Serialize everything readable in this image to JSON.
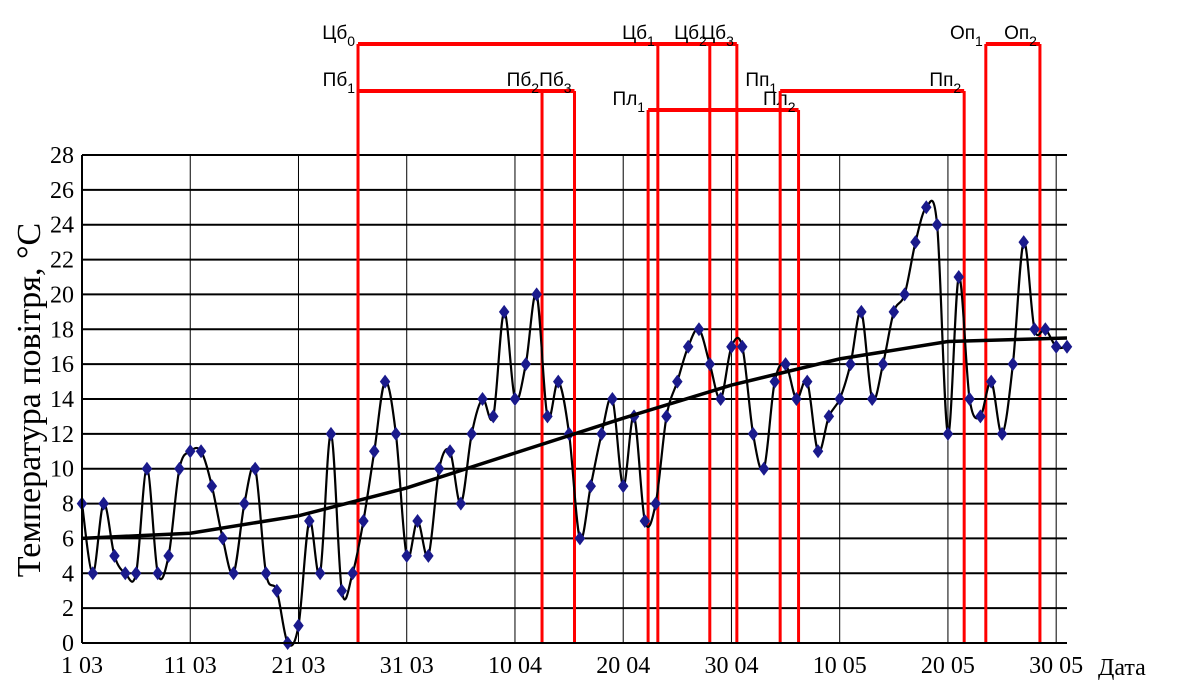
{
  "chart_data": {
    "type": "line",
    "title": "",
    "ylabel": "Температура повітря, °С",
    "xlabel": "Дата",
    "ylim": [
      0,
      28
    ],
    "y_ticks": [
      "0",
      "2",
      "4",
      "6",
      "8",
      "10",
      "12",
      "14",
      "16",
      "18",
      "20",
      "22",
      "24",
      "26",
      "28"
    ],
    "x_tick_labels": [
      "1 03",
      "11 03",
      "21 03",
      "31 03",
      "10 04",
      "20 04",
      "30 04",
      "10 05",
      "20 05",
      "30 05"
    ],
    "grid": true,
    "legend": "none",
    "colors": {
      "series": "#000000",
      "markers": "#1a1a8c",
      "phase_lines": "#ff0000"
    },
    "series": [
      {
        "marker": "diamond",
        "x": [
          0,
          1,
          2,
          3,
          4,
          5,
          6,
          7,
          8,
          9,
          10,
          11,
          12,
          13,
          14,
          15,
          16,
          17,
          18,
          19,
          20,
          21,
          22,
          23,
          24,
          25,
          26,
          27,
          28,
          29,
          30,
          31,
          32,
          33,
          34,
          35,
          36,
          37,
          38,
          39,
          40,
          41,
          42,
          43,
          44,
          45,
          46,
          47,
          48,
          49,
          50,
          51,
          52,
          53,
          54,
          55,
          56,
          57,
          58,
          59,
          60,
          61,
          62,
          63,
          64,
          65,
          66,
          67,
          68,
          69,
          70,
          71,
          72,
          73,
          74,
          75,
          76,
          77,
          78,
          79,
          80,
          81,
          82,
          83,
          84,
          85,
          86,
          87,
          88,
          89,
          90,
          91
        ],
        "values": [
          8,
          4,
          8,
          5,
          4,
          4,
          10,
          4,
          5,
          10,
          11,
          11,
          9,
          6,
          4,
          8,
          10,
          4,
          3,
          0,
          1,
          7,
          4,
          12,
          3,
          4,
          7,
          11,
          15,
          12,
          5,
          7,
          5,
          10,
          11,
          8,
          12,
          14,
          13,
          19,
          14,
          16,
          20,
          13,
          15,
          12,
          6,
          9,
          12,
          14,
          9,
          13,
          7,
          8,
          13,
          15,
          17,
          18,
          16,
          14,
          17,
          17,
          12,
          10,
          15,
          16,
          14,
          15,
          11,
          13,
          14,
          16,
          19,
          14,
          16,
          19,
          20,
          23,
          25,
          24,
          12,
          21,
          14,
          13,
          15,
          12,
          16,
          23,
          18,
          18,
          17,
          17
        ]
      },
      {
        "marker": "none",
        "x": [
          0,
          10,
          20,
          30,
          40,
          50,
          60,
          70,
          80,
          91
        ],
        "values": [
          6.0,
          6.3,
          7.3,
          8.9,
          10.9,
          12.9,
          14.8,
          16.3,
          17.3,
          17.5
        ]
      }
    ],
    "phases": [
      {
        "label": "Цб",
        "sub": "0",
        "level": 1,
        "x1": 25.5,
        "x2": 60.5
      },
      {
        "label": "Цб",
        "sub": "1",
        "level": 1,
        "x1": 53.2,
        "x2": null
      },
      {
        "label": "Цб",
        "sub": "2",
        "level": 1,
        "x1": 58.0,
        "x2": null
      },
      {
        "label": "Цб",
        "sub": "3",
        "level": 1,
        "x1": 60.5,
        "x2": null
      },
      {
        "label": "Пб",
        "sub": "1",
        "level": 2,
        "x1": 25.5,
        "x2": 45.5
      },
      {
        "label": "Пб",
        "sub": "2",
        "level": 2,
        "x1": 42.5,
        "x2": null
      },
      {
        "label": "Пб",
        "sub": "3",
        "level": 2,
        "x1": 45.5,
        "x2": null
      },
      {
        "label": "Пл",
        "sub": "1",
        "level": 3,
        "x1": 52.3,
        "x2": 66.2
      },
      {
        "label": "Пл",
        "sub": "2",
        "level": 3,
        "x1": 66.2,
        "x2": null
      },
      {
        "label": "Пп",
        "sub": "1",
        "level": 2,
        "x1": 64.5,
        "x2": 81.5
      },
      {
        "label": "Пп",
        "sub": "2",
        "level": 2,
        "x1": 81.5,
        "x2": null
      },
      {
        "label": "Оп",
        "sub": "1",
        "level": 1,
        "x1": 83.5,
        "x2": 88.5
      },
      {
        "label": "Оп",
        "sub": "2",
        "level": 1,
        "x1": 88.5,
        "x2": null
      }
    ]
  }
}
